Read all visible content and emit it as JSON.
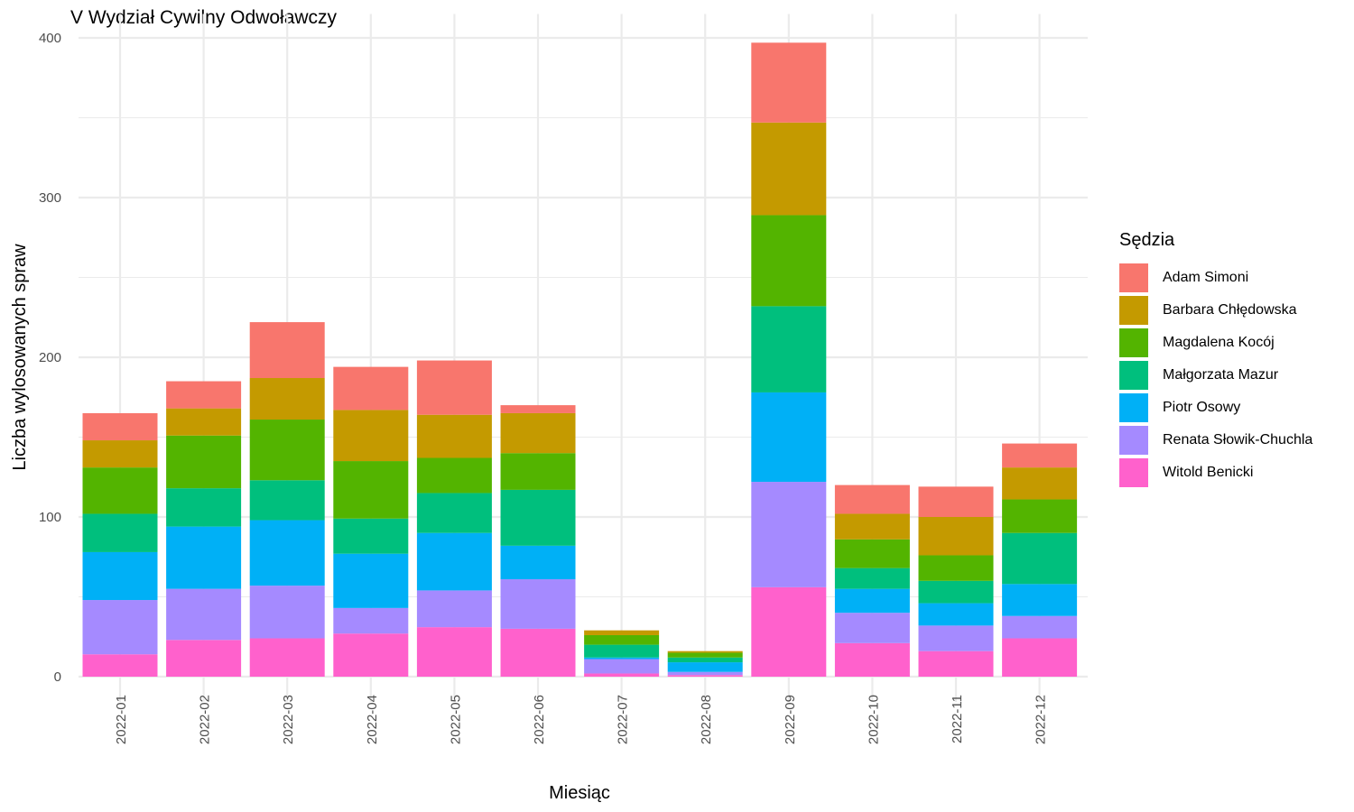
{
  "chart_data": {
    "type": "bar",
    "stacked": true,
    "title": "V Wydział Cywilny Odwoławczy",
    "xlabel": "Miesiąc",
    "ylabel": "Liczba wylosowanych spraw",
    "ylim": [
      0,
      415
    ],
    "y_ticks": [
      0,
      100,
      200,
      300,
      400
    ],
    "grid": true,
    "legend_title": "Sędzia",
    "legend_position": "right",
    "categories": [
      "2022-01",
      "2022-02",
      "2022-03",
      "2022-04",
      "2022-05",
      "2022-06",
      "2022-07",
      "2022-08",
      "2022-09",
      "2022-10",
      "2022-11",
      "2022-12"
    ],
    "series": [
      {
        "name": "Witold Benicki",
        "color": "#FF61CC",
        "values": [
          14,
          23,
          24,
          27,
          31,
          30,
          2,
          1,
          56,
          21,
          16,
          24
        ]
      },
      {
        "name": "Renata Słowik-Chuchla",
        "color": "#A58AFF",
        "values": [
          34,
          32,
          33,
          16,
          23,
          31,
          9,
          2,
          66,
          19,
          16,
          14
        ]
      },
      {
        "name": "Piotr Osowy",
        "color": "#00B0F6",
        "values": [
          30,
          39,
          41,
          34,
          36,
          21,
          1,
          6,
          56,
          15,
          14,
          20
        ]
      },
      {
        "name": "Małgorzata Mazur",
        "color": "#00BF7D",
        "values": [
          24,
          24,
          25,
          22,
          25,
          35,
          8,
          3,
          54,
          13,
          14,
          32
        ]
      },
      {
        "name": "Magdalena Kocój",
        "color": "#53B400",
        "values": [
          29,
          33,
          38,
          36,
          22,
          23,
          6,
          3,
          57,
          18,
          16,
          21
        ]
      },
      {
        "name": "Barbara Chłędowska",
        "color": "#C49A00",
        "values": [
          17,
          17,
          26,
          32,
          27,
          25,
          3,
          1,
          58,
          16,
          24,
          20
        ]
      },
      {
        "name": "Adam Simoni",
        "color": "#F8766D",
        "values": [
          17,
          17,
          35,
          27,
          34,
          5,
          0,
          0,
          50,
          18,
          19,
          15
        ]
      }
    ],
    "legend_order": [
      "Adam Simoni",
      "Barbara Chłędowska",
      "Magdalena Kocój",
      "Małgorzata Mazur",
      "Piotr Osowy",
      "Renata Słowik-Chuchla",
      "Witold Benicki"
    ]
  }
}
